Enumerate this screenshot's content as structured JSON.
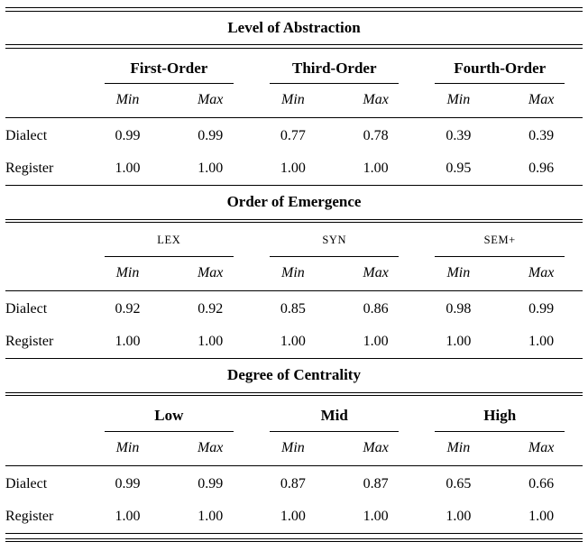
{
  "table": {
    "sections": [
      {
        "title": "Level of Abstraction",
        "groups": [
          {
            "name": "First-Order"
          },
          {
            "name": "Third-Order"
          },
          {
            "name": "Fourth-Order"
          }
        ],
        "subheaders": [
          "Min",
          "Max"
        ],
        "rows": [
          {
            "label": "Dialect",
            "values": [
              "0.99",
              "0.99",
              "0.77",
              "0.78",
              "0.39",
              "0.39"
            ]
          },
          {
            "label": "Register",
            "values": [
              "1.00",
              "1.00",
              "1.00",
              "1.00",
              "0.95",
              "0.96"
            ]
          }
        ]
      },
      {
        "title": "Order of Emergence",
        "groups": [
          {
            "name": "LEX"
          },
          {
            "name": "SYN"
          },
          {
            "name": "SEM+"
          }
        ],
        "subheaders": [
          "Min",
          "Max"
        ],
        "rows": [
          {
            "label": "Dialect",
            "values": [
              "0.92",
              "0.92",
              "0.85",
              "0.86",
              "0.98",
              "0.99"
            ]
          },
          {
            "label": "Register",
            "values": [
              "1.00",
              "1.00",
              "1.00",
              "1.00",
              "1.00",
              "1.00"
            ]
          }
        ]
      },
      {
        "title": "Degree of Centrality",
        "groups": [
          {
            "name": "Low"
          },
          {
            "name": "Mid"
          },
          {
            "name": "High"
          }
        ],
        "subheaders": [
          "Min",
          "Max"
        ],
        "rows": [
          {
            "label": "Dialect",
            "values": [
              "0.99",
              "0.99",
              "0.87",
              "0.87",
              "0.65",
              "0.66"
            ]
          },
          {
            "label": "Register",
            "values": [
              "1.00",
              "1.00",
              "1.00",
              "1.00",
              "1.00",
              "1.00"
            ]
          }
        ]
      }
    ]
  }
}
